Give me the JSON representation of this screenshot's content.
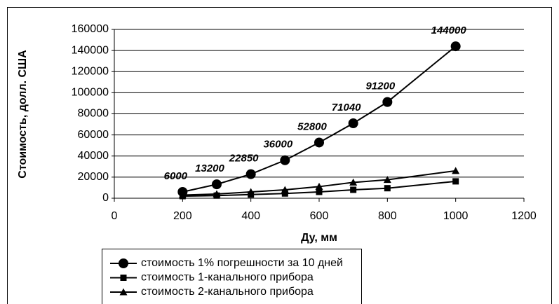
{
  "chart_data": {
    "type": "line",
    "x_label": "Ду, мм",
    "y_label": "Стоимость, долл. США",
    "x": [
      200,
      300,
      400,
      500,
      600,
      700,
      800,
      1000
    ],
    "series": [
      {
        "name": "стоимость 1% погрешности за 10 дней",
        "color": "#000000",
        "marker": "circle",
        "values": [
          6000,
          13200,
          22850,
          36000,
          52800,
          71040,
          91200,
          144000
        ]
      },
      {
        "name": "стоимость 1-канального прибора",
        "color": "#000000",
        "marker": "square",
        "values": [
          2000,
          2500,
          3500,
          4500,
          6000,
          8000,
          9500,
          16000
        ]
      },
      {
        "name": "стоимость 2-канального прибора",
        "color": "#000000",
        "marker": "triangle",
        "values": [
          3000,
          4000,
          6000,
          8000,
          11000,
          15000,
          17500,
          26000
        ]
      }
    ],
    "xlim": [
      0,
      1200
    ],
    "xticks": [
      0,
      200,
      400,
      600,
      800,
      1000,
      1200
    ],
    "ylim": [
      0,
      160000
    ],
    "yticks": [
      0,
      20000,
      40000,
      60000,
      80000,
      100000,
      120000,
      140000,
      160000
    ],
    "grid": true,
    "legend": "bottom"
  }
}
